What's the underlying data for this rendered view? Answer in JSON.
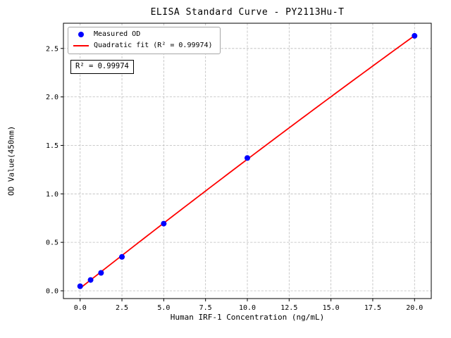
{
  "chart_data": {
    "type": "scatter",
    "title": "ELISA Standard Curve - PY2113Hu-T",
    "xlabel": "Human IRF-1 Concentration (ng/mL)",
    "ylabel": "OD Value(450nm)",
    "xlim": [
      -1,
      21
    ],
    "ylim": [
      -0.08,
      2.76
    ],
    "xticks": [
      0.0,
      2.5,
      5.0,
      7.5,
      10.0,
      12.5,
      15.0,
      17.5,
      20.0
    ],
    "yticks": [
      0.0,
      0.5,
      1.0,
      1.5,
      2.0,
      2.5
    ],
    "grid": true,
    "grid_style": "dashed",
    "legend_position": "upper-left",
    "annotation": "R² = 0.99974",
    "colors": {
      "scatter": "#0000ff",
      "fit_line": "#ff0000",
      "grid": "#bbbbbb",
      "spine": "#000000"
    },
    "series": [
      {
        "name": "Measured OD",
        "type": "scatter",
        "color": "#0000ff",
        "x": [
          0,
          0.625,
          1.25,
          2.5,
          5,
          10,
          20
        ],
        "y": [
          0.047,
          0.112,
          0.185,
          0.35,
          0.693,
          1.37,
          2.63
        ]
      },
      {
        "name": "Quadratic fit (R² = 0.99974)",
        "type": "line",
        "color": "#ff0000",
        "x_range": [
          0,
          20
        ],
        "quadratic": {
          "a": 0.0268,
          "b": 0.13574,
          "c": -0.0002725
        },
        "r_squared": 0.99974
      }
    ]
  }
}
